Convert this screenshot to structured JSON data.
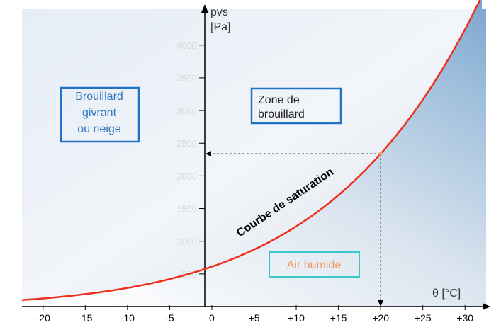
{
  "chart_data": {
    "type": "line",
    "xlabel": "θ [°C]",
    "ylabel_line1": "pvs",
    "ylabel_line2": "[Pa]",
    "x_ticks": [
      -20,
      -15,
      -10,
      -5,
      0,
      5,
      10,
      15,
      20,
      25,
      30
    ],
    "x_tick_labels": [
      "-20",
      "-15",
      "-10",
      "-5",
      "0",
      "+5",
      "+10",
      "+15",
      "+20",
      "+25",
      "+30"
    ],
    "y_ticks": [
      500,
      1000,
      1500,
      2000,
      2500,
      3000,
      3500,
      4000
    ],
    "y_tick_labels": [
      "500",
      "1000",
      "1500",
      "2000",
      "2500",
      "3000",
      "3500",
      "4000"
    ],
    "xlim": [
      -22.5,
      32.5
    ],
    "ylim": [
      0,
      4550
    ],
    "series": [
      {
        "type": "saturation-curve",
        "x": [
          -22.5,
          -20,
          -15,
          -10,
          -5,
          0,
          5,
          10,
          15,
          20,
          25,
          30,
          32
        ],
        "y": [
          85,
          103,
          165,
          260,
          402,
          611,
          872,
          1228,
          1705,
          2339,
          3169,
          4246,
          4755
        ]
      }
    ],
    "curve_label": "Courbe de saturation",
    "marked_point": {
      "x": 20,
      "y": 2339
    },
    "zones": {
      "frost": {
        "line1": "Brouillard",
        "line2": "givrant",
        "line3": "ou neige"
      },
      "fog": {
        "line1": "Zone de",
        "line2": "brouillard"
      },
      "humid": {
        "label": "Air humide"
      }
    },
    "colors": {
      "curve": "#ee2e1a",
      "frost_box": "#1f74c4",
      "fog_box": "#1f74c4",
      "humid_box": "#3cc8c8",
      "humid_text": "#f4955c",
      "frost_text": "#2f78c2",
      "fog_text": "#222222"
    },
    "grid": false
  }
}
